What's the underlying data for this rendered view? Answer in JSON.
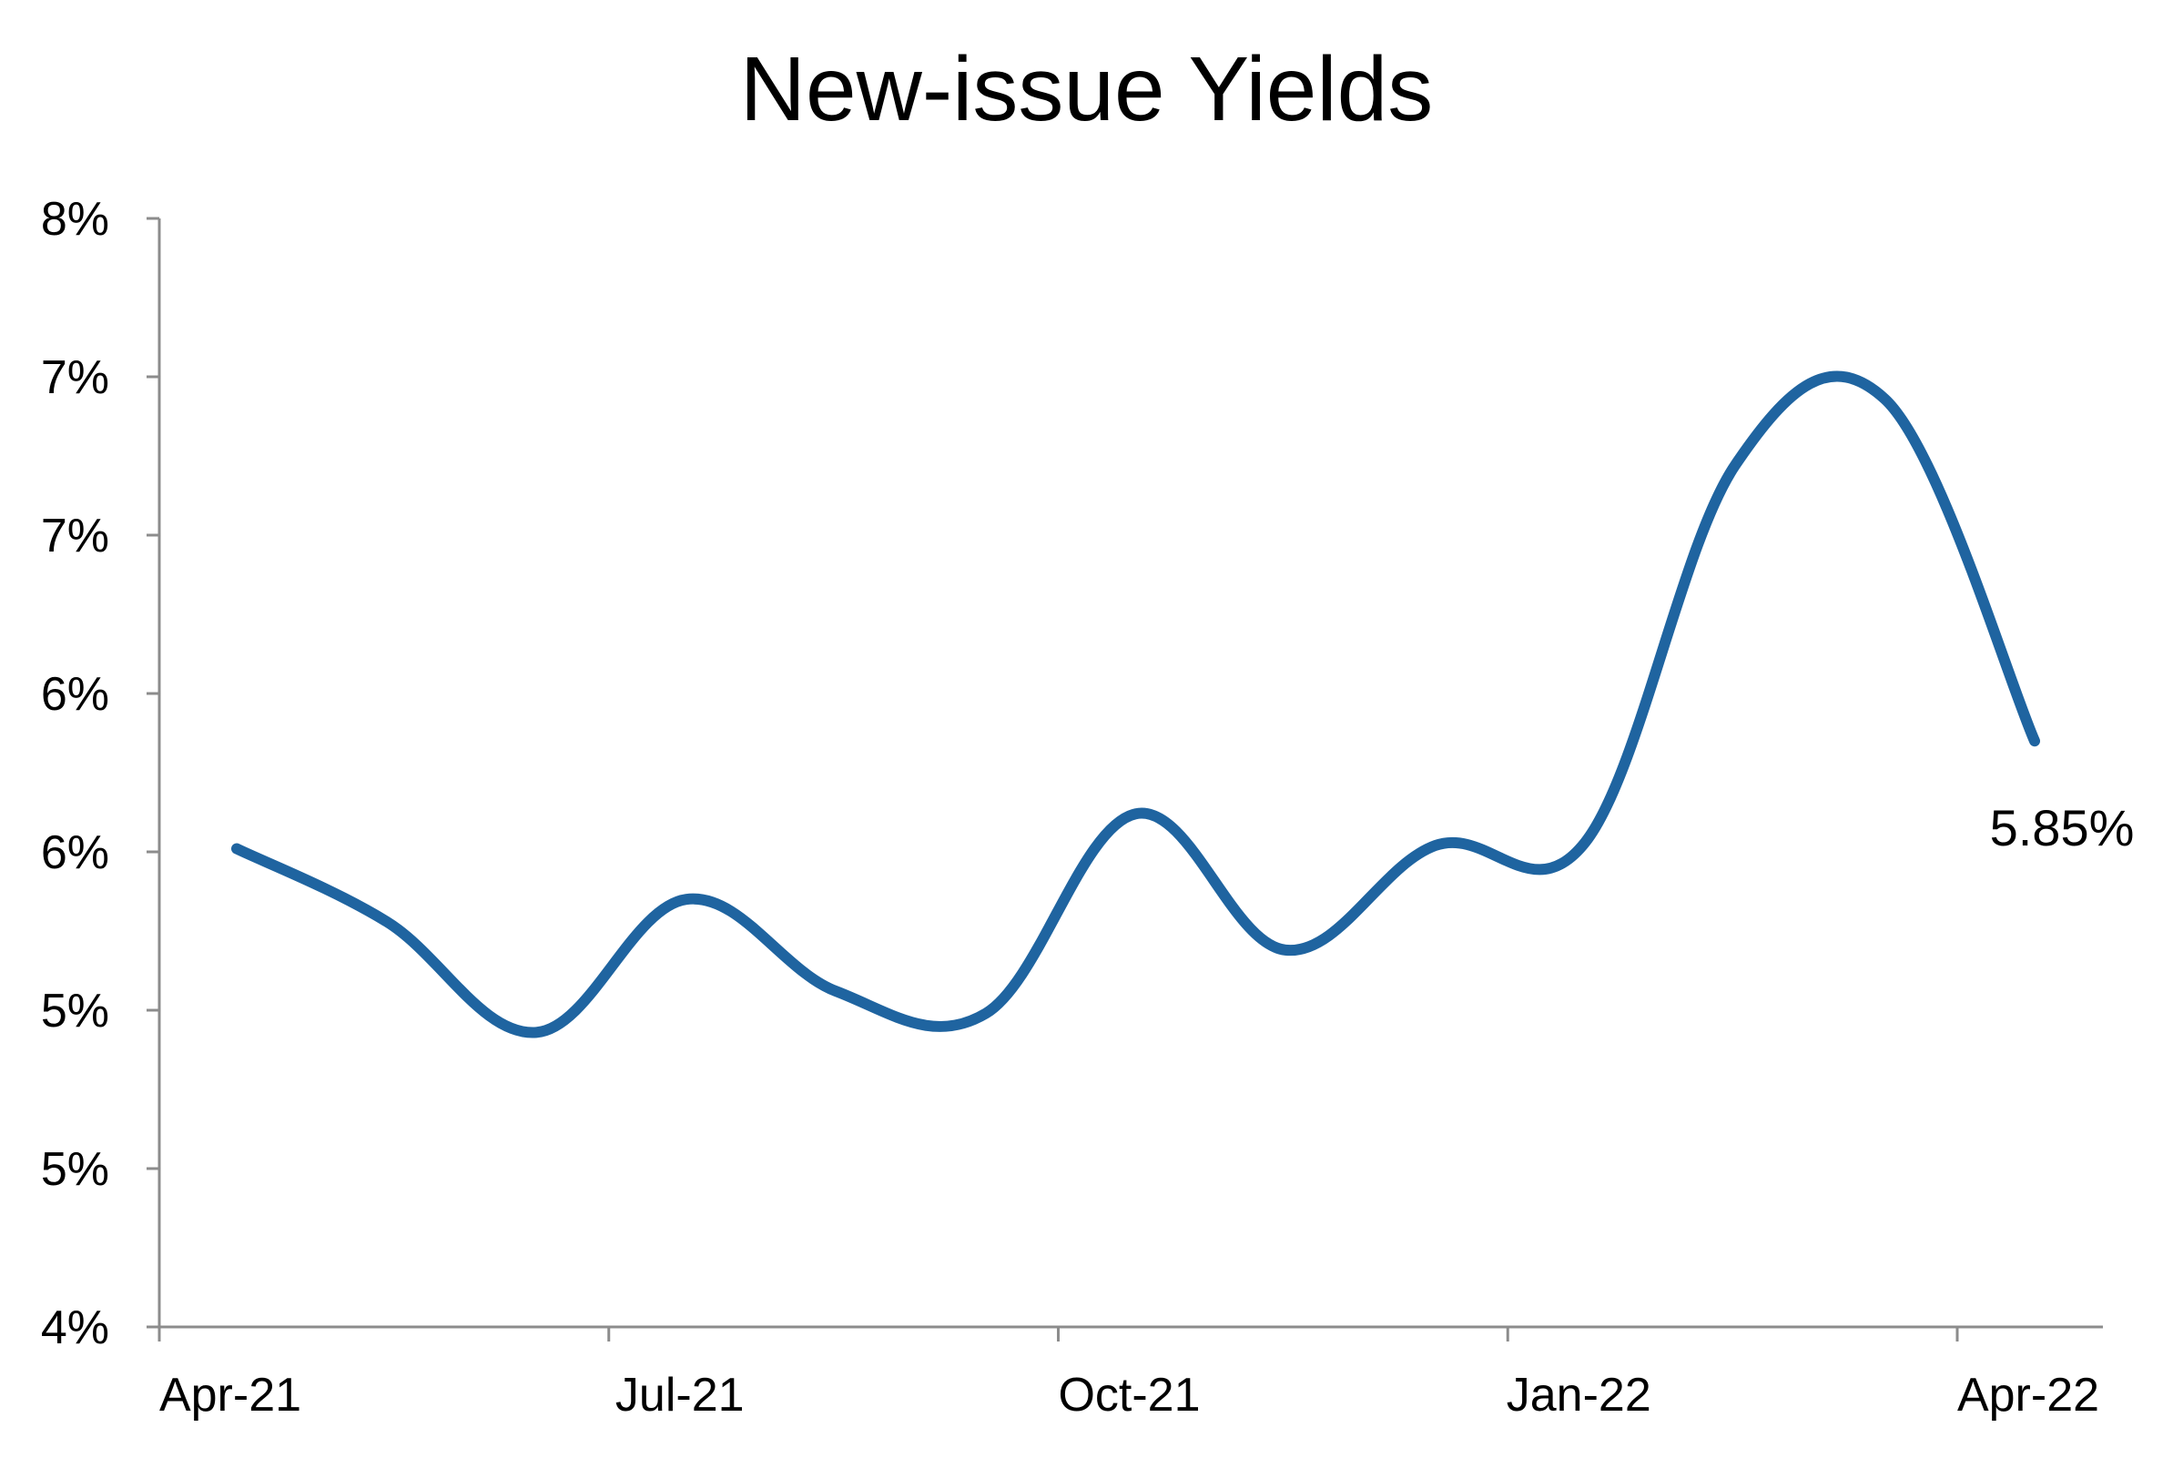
{
  "chart_data": {
    "type": "line",
    "title": "New-issue Yields",
    "xlabel": "",
    "ylabel": "",
    "x_ticks": [
      "Apr-21",
      "Jul-21",
      "Oct-21",
      "Jan-22",
      "Apr-22"
    ],
    "y_ticks": [
      "4%",
      "5%",
      "5%",
      "6%",
      "6%",
      "7%",
      "7%",
      "8%"
    ],
    "ylim": [
      4.0,
      7.5
    ],
    "grid": false,
    "legend": "none",
    "line_color": "#1F64A0",
    "series": [
      {
        "x": [
          "2021-04",
          "2021-05",
          "2021-06",
          "2021-07",
          "2021-08",
          "2021-09",
          "2021-10",
          "2021-11",
          "2021-12",
          "2022-01",
          "2022-02",
          "2022-03",
          "2022-04"
        ],
        "values": [
          5.51,
          5.28,
          4.93,
          5.35,
          5.06,
          4.99,
          5.62,
          5.19,
          5.52,
          5.53,
          6.72,
          6.93,
          5.85
        ]
      }
    ],
    "annotations": [
      {
        "text": "5.85%",
        "point_index": 12
      }
    ]
  }
}
